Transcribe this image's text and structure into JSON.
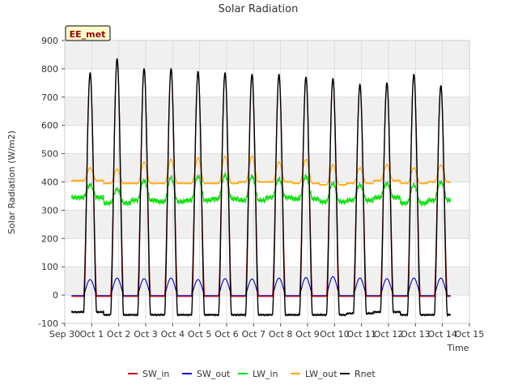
{
  "chart_data": {
    "type": "line",
    "title": "Solar Radiation",
    "xlabel": "Time",
    "ylabel": "Solar Radiation (W/m2)",
    "annotation": "EE_met",
    "ylim": [
      -100,
      900
    ],
    "yticks": [
      -100,
      0,
      100,
      200,
      300,
      400,
      500,
      600,
      700,
      800,
      900
    ],
    "xlim": [
      0,
      15
    ],
    "xtick_positions": [
      0,
      1,
      2,
      3,
      4,
      5,
      6,
      7,
      8,
      9,
      10,
      11,
      12,
      13,
      14,
      15
    ],
    "xtick_labels": [
      "Sep 30",
      "Oct 1",
      "Oct 2",
      "Oct 3",
      "Oct 4",
      "Oct 5",
      "Oct 6",
      "Oct 7",
      "Oct 8",
      "Oct 9",
      "Oct 10",
      "Oct 11",
      "Oct 12",
      "Oct 13",
      "Oct 14",
      "Oct 15"
    ],
    "grid": true,
    "legend_position": "bottom",
    "daily_peaks": {
      "days": [
        1,
        2,
        3,
        4,
        5,
        6,
        7,
        8,
        9,
        10,
        11,
        12,
        13,
        14
      ],
      "sw_in": [
        785,
        830,
        800,
        800,
        790,
        785,
        780,
        780,
        770,
        765,
        745,
        750,
        780,
        740
      ],
      "sw_out": [
        55,
        60,
        58,
        60,
        55,
        58,
        57,
        60,
        62,
        65,
        60,
        58,
        60,
        60
      ],
      "lw_in_max": [
        390,
        375,
        405,
        415,
        420,
        425,
        420,
        410,
        420,
        395,
        390,
        395,
        390,
        400
      ],
      "lw_in_min": [
        345,
        325,
        335,
        330,
        335,
        340,
        335,
        345,
        340,
        330,
        335,
        345,
        325,
        335
      ],
      "lw_out_max": [
        450,
        445,
        470,
        480,
        485,
        490,
        490,
        470,
        480,
        460,
        450,
        460,
        450,
        460
      ],
      "lw_out_min": [
        405,
        395,
        395,
        395,
        395,
        395,
        400,
        400,
        395,
        390,
        395,
        405,
        395,
        400
      ],
      "rnet": [
        785,
        835,
        800,
        800,
        790,
        785,
        780,
        780,
        770,
        765,
        745,
        750,
        780,
        740
      ],
      "rnet_night": [
        -60,
        -70,
        -70,
        -70,
        -70,
        -70,
        -70,
        -70,
        -70,
        -70,
        -65,
        -60,
        -70,
        -70
      ]
    },
    "series": [
      {
        "name": "SW_in",
        "color": "#cc0000"
      },
      {
        "name": "SW_out",
        "color": "#0000cc"
      },
      {
        "name": "LW_in",
        "color": "#00dd00"
      },
      {
        "name": "LW_out",
        "color": "#ffa500"
      },
      {
        "name": "Rnet",
        "color": "#000000"
      }
    ]
  }
}
